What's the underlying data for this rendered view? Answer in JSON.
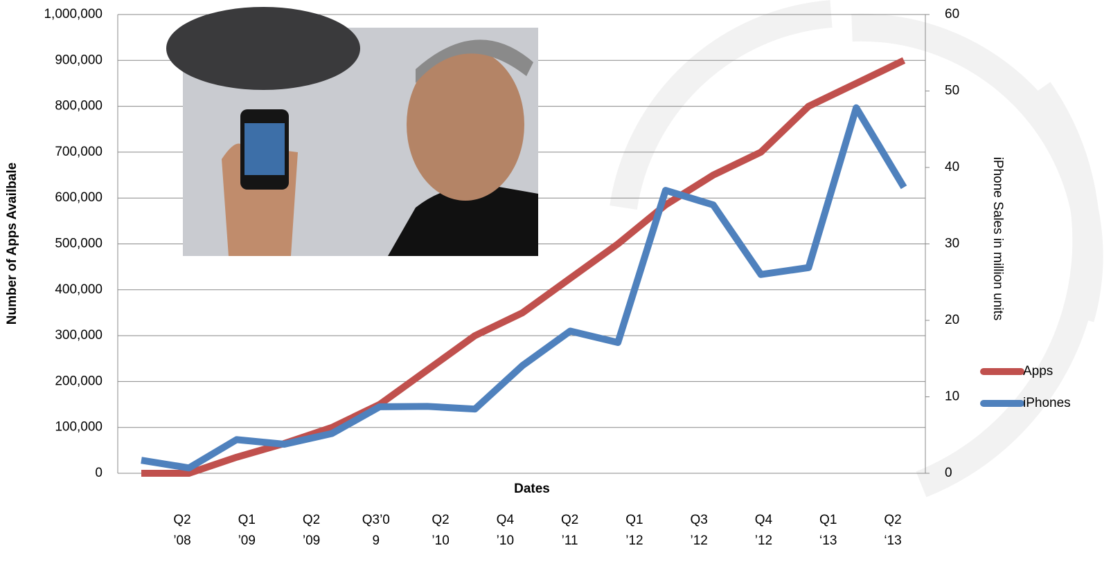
{
  "chart_data": {
    "type": "line",
    "xlabel": "Dates",
    "ylabel": "Number of Apps Availbale",
    "y2label": "iPhone Sales in million units",
    "categories": [
      null,
      null,
      null,
      null,
      null,
      null,
      null,
      null,
      null,
      null,
      null,
      null,
      null,
      null,
      null,
      null,
      null
    ],
    "x_labels": [
      [
        "Q2",
        "’08"
      ],
      [
        "Q1",
        "’09"
      ],
      [
        "Q2",
        "’09"
      ],
      [
        "Q3’0",
        "9"
      ],
      [
        "Q2",
        "’10"
      ],
      [
        "Q4",
        "’10"
      ],
      [
        "Q2",
        "’11"
      ],
      [
        "Q1",
        "’12"
      ],
      [
        "Q3",
        "’12"
      ],
      [
        "Q4",
        "’12"
      ],
      [
        "Q1",
        "‘13"
      ],
      [
        "Q2",
        "‘13"
      ]
    ],
    "series": [
      {
        "name": "Apps",
        "color": "#c0504d",
        "axis": "y",
        "values": [
          0,
          0,
          35000,
          65000,
          100000,
          150000,
          225000,
          300000,
          350000,
          425000,
          500000,
          585000,
          650000,
          700000,
          800000,
          850000,
          900000
        ]
      },
      {
        "name": "iPhones",
        "color": "#4f81bd",
        "axis": "y2",
        "values": [
          1.7,
          0.7,
          4.4,
          3.8,
          5.2,
          8.7,
          8.75,
          8.4,
          14.1,
          18.6,
          17.1,
          37.0,
          35.1,
          26.0,
          26.9,
          47.8,
          37.4
        ]
      }
    ],
    "ylim": [
      0,
      1000000
    ],
    "yticks": [
      {
        "value": 0,
        "label": "0"
      },
      {
        "value": 100000,
        "label": "100,000"
      },
      {
        "value": 200000,
        "label": "200,000"
      },
      {
        "value": 300000,
        "label": "300,000"
      },
      {
        "value": 400000,
        "label": "400,000"
      },
      {
        "value": 500000,
        "label": "500,000"
      },
      {
        "value": 600000,
        "label": "600,000"
      },
      {
        "value": 700000,
        "label": "700,000"
      },
      {
        "value": 800000,
        "label": "800,000"
      },
      {
        "value": 900000,
        "label": "900,000"
      },
      {
        "value": 1000000,
        "label": "1,000,000"
      }
    ],
    "y2lim": [
      0,
      60
    ],
    "y2ticks": [
      0,
      10,
      20,
      30,
      40,
      50,
      60
    ],
    "grid": true,
    "legend": "right"
  }
}
